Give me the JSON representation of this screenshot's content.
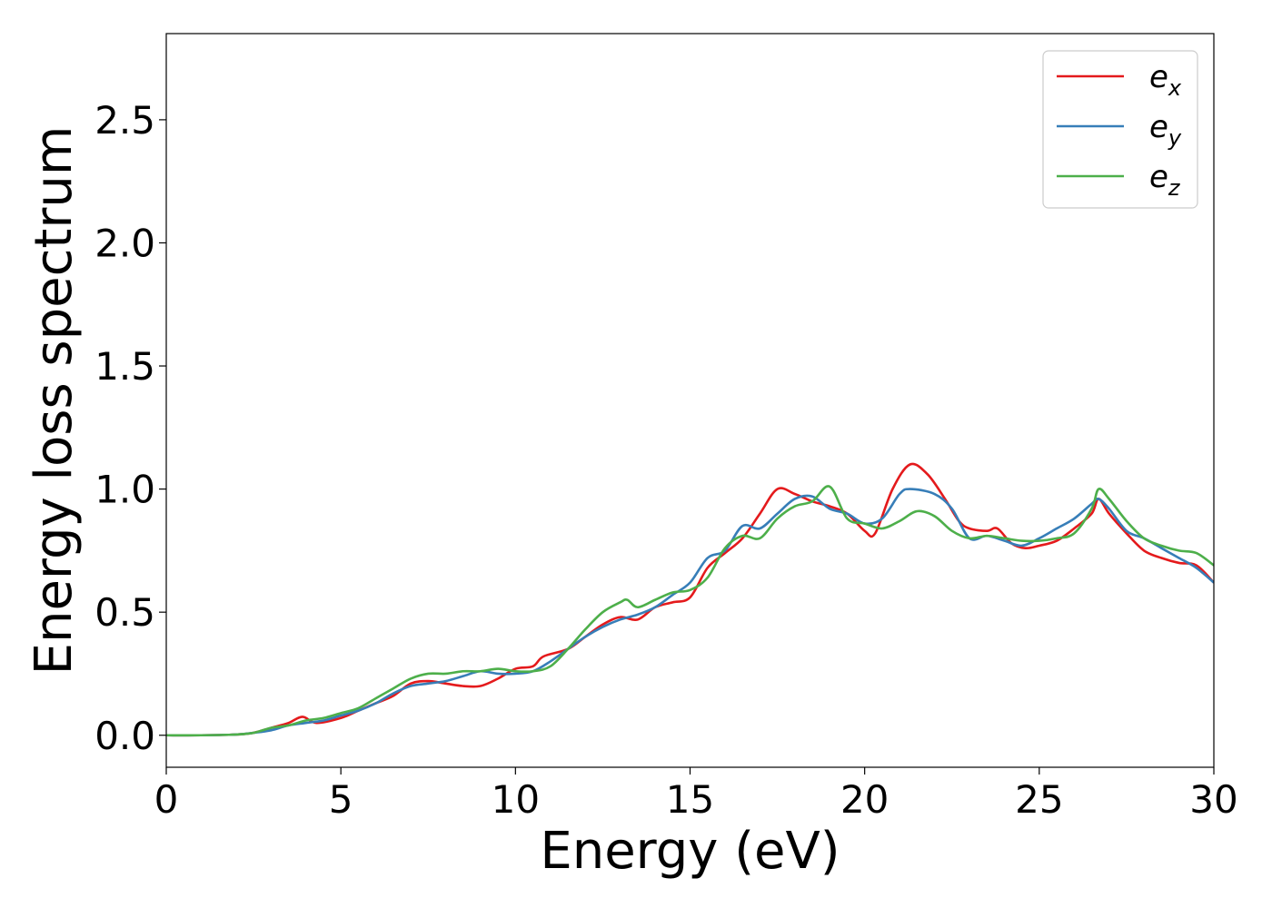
{
  "chart_data": {
    "type": "line",
    "xlabel": "Energy (eV)",
    "ylabel": "Energy loss spectrum",
    "xlim": [
      0,
      30
    ],
    "ylim": [
      -0.13,
      2.85
    ],
    "xticks": [
      0,
      5,
      10,
      15,
      20,
      25,
      30
    ],
    "yticks": [
      0.0,
      0.5,
      1.0,
      1.5,
      2.0,
      2.5
    ],
    "xtick_labels": [
      "0",
      "5",
      "10",
      "15",
      "20",
      "25",
      "30"
    ],
    "ytick_labels": [
      "0.0",
      "0.5",
      "1.0",
      "1.5",
      "2.0",
      "2.5"
    ],
    "grid": false,
    "legend_position": "top-right",
    "series": [
      {
        "name": "e",
        "subscript": "x",
        "color": "#e41a1c",
        "x": [
          0,
          1,
          2,
          2.5,
          3,
          3.5,
          3.9,
          4.3,
          5,
          5.5,
          6,
          6.5,
          7,
          7.5,
          8,
          8.5,
          9,
          9.5,
          10,
          10.5,
          10.8,
          11.5,
          12,
          12.5,
          13,
          13.5,
          14,
          14.5,
          15,
          15.5,
          16,
          16.5,
          17,
          17.5,
          18,
          18.5,
          19,
          19.5,
          20,
          20.3,
          20.8,
          21.3,
          21.8,
          22.3,
          22.7,
          23,
          23.5,
          23.8,
          24.2,
          24.6,
          25,
          25.5,
          26,
          26.5,
          26.7,
          27,
          27.5,
          28,
          28.5,
          29,
          29.5,
          30
        ],
        "y": [
          0,
          0,
          0.003,
          0.01,
          0.03,
          0.05,
          0.075,
          0.05,
          0.07,
          0.1,
          0.13,
          0.16,
          0.21,
          0.22,
          0.21,
          0.2,
          0.2,
          0.23,
          0.27,
          0.28,
          0.32,
          0.35,
          0.4,
          0.45,
          0.48,
          0.47,
          0.52,
          0.54,
          0.56,
          0.68,
          0.74,
          0.8,
          0.9,
          1.0,
          0.98,
          0.95,
          0.93,
          0.9,
          0.83,
          0.82,
          1.0,
          1.1,
          1.06,
          0.96,
          0.87,
          0.84,
          0.83,
          0.84,
          0.78,
          0.76,
          0.77,
          0.79,
          0.84,
          0.9,
          0.96,
          0.9,
          0.82,
          0.75,
          0.72,
          0.7,
          0.69,
          0.62
        ]
      },
      {
        "name": "e",
        "subscript": "y",
        "color": "#377eb8",
        "x": [
          0,
          1,
          2,
          2.5,
          3,
          3.5,
          4,
          4.5,
          5,
          5.5,
          6,
          6.5,
          7,
          7.5,
          8,
          8.5,
          9,
          9.5,
          10,
          10.5,
          11,
          11.5,
          12,
          12.5,
          13,
          13.5,
          14,
          14.5,
          15,
          15.5,
          16,
          16.5,
          17,
          17.5,
          18,
          18.5,
          19,
          19.5,
          20,
          20.5,
          21,
          21.3,
          22,
          22.5,
          23,
          23.5,
          24,
          24.5,
          25,
          25.5,
          26,
          26.5,
          26.7,
          27,
          27.5,
          28,
          28.5,
          29,
          29.5,
          30
        ],
        "y": [
          0,
          0,
          0.003,
          0.01,
          0.02,
          0.04,
          0.05,
          0.06,
          0.08,
          0.1,
          0.13,
          0.17,
          0.2,
          0.21,
          0.22,
          0.24,
          0.26,
          0.25,
          0.25,
          0.26,
          0.3,
          0.35,
          0.4,
          0.44,
          0.47,
          0.49,
          0.52,
          0.57,
          0.62,
          0.72,
          0.75,
          0.85,
          0.84,
          0.9,
          0.96,
          0.97,
          0.92,
          0.9,
          0.86,
          0.88,
          0.98,
          1.0,
          0.98,
          0.92,
          0.8,
          0.81,
          0.79,
          0.77,
          0.8,
          0.84,
          0.88,
          0.94,
          0.96,
          0.92,
          0.83,
          0.8,
          0.76,
          0.72,
          0.68,
          0.62
        ]
      },
      {
        "name": "e",
        "subscript": "z",
        "color": "#4daf4a",
        "x": [
          0,
          1,
          2,
          2.5,
          3,
          3.5,
          4,
          4.5,
          5,
          5.5,
          6,
          6.5,
          7,
          7.5,
          8,
          8.5,
          9,
          9.5,
          10,
          10.5,
          11,
          11.5,
          12,
          12.5,
          13,
          13.2,
          13.5,
          14,
          14.5,
          15,
          15.5,
          16,
          16.5,
          17,
          17.5,
          18,
          18.5,
          19,
          19.5,
          20,
          20.5,
          21,
          21.5,
          22,
          22.5,
          23,
          23.5,
          24,
          24.5,
          25,
          25.5,
          26,
          26.5,
          26.7,
          27,
          27.5,
          28,
          28.5,
          29,
          29.5,
          30
        ],
        "y": [
          0,
          0,
          0.003,
          0.01,
          0.03,
          0.04,
          0.06,
          0.07,
          0.09,
          0.11,
          0.15,
          0.19,
          0.23,
          0.25,
          0.25,
          0.26,
          0.26,
          0.27,
          0.26,
          0.26,
          0.28,
          0.35,
          0.43,
          0.5,
          0.54,
          0.55,
          0.52,
          0.55,
          0.58,
          0.59,
          0.64,
          0.76,
          0.81,
          0.8,
          0.88,
          0.93,
          0.95,
          1.01,
          0.88,
          0.86,
          0.84,
          0.87,
          0.91,
          0.89,
          0.83,
          0.8,
          0.81,
          0.8,
          0.79,
          0.79,
          0.8,
          0.82,
          0.92,
          1.0,
          0.96,
          0.87,
          0.8,
          0.77,
          0.75,
          0.74,
          0.69
        ]
      }
    ]
  }
}
